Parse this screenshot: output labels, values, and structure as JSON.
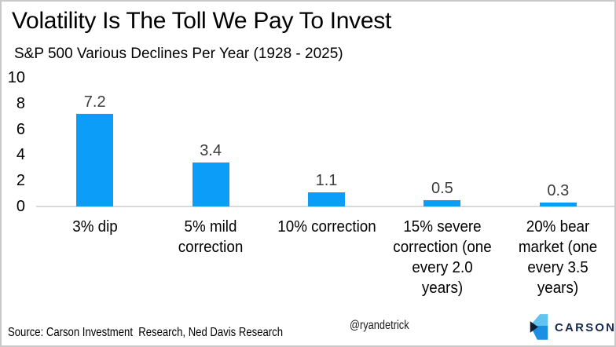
{
  "header": {
    "title": "Volatility Is The Toll We Pay To Invest",
    "subtitle": "S&P 500 Various Declines Per Year (1928 - 2025)"
  },
  "chart_data": {
    "type": "bar",
    "title": "Volatility Is The Toll We Pay To Invest",
    "subtitle": "S&P 500 Various Declines Per Year (1928 - 2025)",
    "categories": [
      "3% dip",
      "5% mild\ncorrection",
      "10% correction",
      "15% severe\ncorrection (one\nevery 2.0\nyears)",
      "20% bear\nmarket (one\nevery 3.5\nyears)"
    ],
    "values": [
      7.2,
      3.4,
      1.1,
      0.5,
      0.3
    ],
    "value_labels": [
      "7.2",
      "3.4",
      "1.1",
      "0.5",
      "0.3"
    ],
    "xlabel": "",
    "ylabel": "",
    "ylim": [
      0,
      10
    ],
    "yticks": [
      0,
      2,
      4,
      6,
      8,
      10
    ],
    "grid": false,
    "legend": false,
    "bar_color": "#0c9df8",
    "value_label_color": "#3c3c3c",
    "axis_line_color": "#d9d9d9"
  },
  "footer": {
    "source": "Source: Carson Investment  Research, Ned Davis Research",
    "handle": "@ryandetrick",
    "brand": "CARSON",
    "brand_icon": "carson-chevron-icon",
    "brand_colors": {
      "light_blue": "#63c3f0",
      "mid_blue": "#1d8fe3",
      "navy": "#0d1f33",
      "wordmark": "#16294c"
    }
  }
}
